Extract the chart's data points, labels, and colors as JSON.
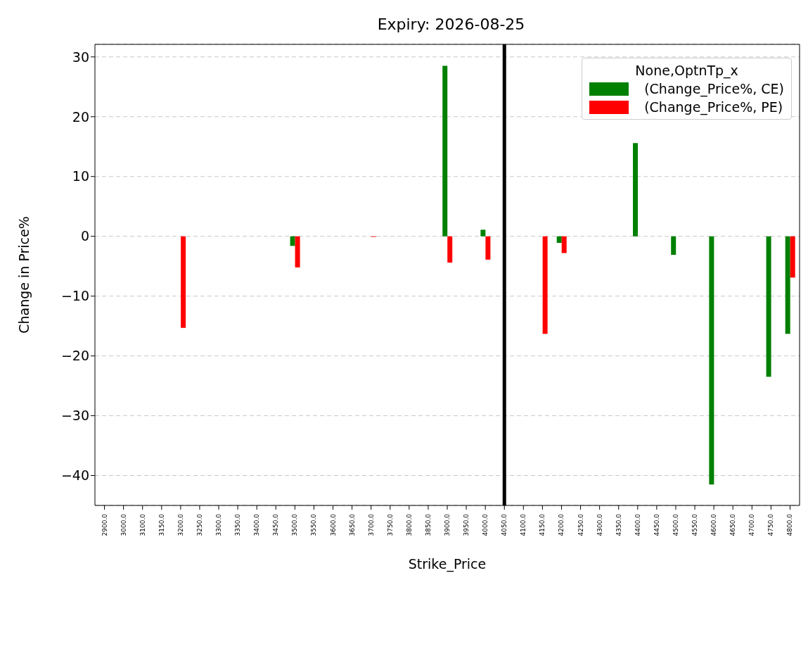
{
  "chart_data": {
    "type": "bar",
    "title": "Expiry: 2026-08-25",
    "xlabel": "Strike_Price",
    "ylabel": "Change in Price%",
    "legend_title": "None,OptnTp_x",
    "categories": [
      "2900.0",
      "3000.0",
      "3100.0",
      "3150.0",
      "3200.0",
      "3250.0",
      "3300.0",
      "3350.0",
      "3400.0",
      "3450.0",
      "3500.0",
      "3550.0",
      "3600.0",
      "3650.0",
      "3700.0",
      "3750.0",
      "3800.0",
      "3850.0",
      "3900.0",
      "3950.0",
      "4000.0",
      "4050.0",
      "4100.0",
      "4150.0",
      "4200.0",
      "4250.0",
      "4300.0",
      "4350.0",
      "4400.0",
      "4450.0",
      "4500.0",
      "4550.0",
      "4600.0",
      "4650.0",
      "4700.0",
      "4750.0",
      "4800.0"
    ],
    "series": [
      {
        "name": "(Change_Price%, CE)",
        "color": "#008000",
        "values": [
          null,
          null,
          null,
          null,
          null,
          null,
          null,
          null,
          null,
          null,
          -1.6,
          null,
          null,
          null,
          null,
          null,
          null,
          null,
          28.5,
          null,
          1.1,
          null,
          null,
          null,
          -1.1,
          null,
          null,
          null,
          15.6,
          null,
          -3.1,
          null,
          -41.5,
          null,
          null,
          -23.5,
          -16.3
        ]
      },
      {
        "name": "(Change_Price%, PE)",
        "color": "#ff0000",
        "values": [
          null,
          null,
          null,
          null,
          -15.3,
          null,
          null,
          null,
          null,
          null,
          -5.2,
          null,
          null,
          null,
          -0.1,
          null,
          null,
          null,
          -4.4,
          null,
          -3.9,
          null,
          null,
          -16.3,
          -2.8,
          null,
          null,
          null,
          null,
          null,
          null,
          null,
          null,
          null,
          null,
          null,
          -6.9
        ]
      }
    ],
    "ylim": [
      -45,
      32.1
    ],
    "yticks": [
      -40,
      -30,
      -20,
      -10,
      0,
      10,
      20,
      30
    ],
    "grid": "y",
    "legend": "top right",
    "ref_lines": [
      {
        "axis": "x",
        "value": "4050.0",
        "color": "#000000"
      }
    ]
  }
}
